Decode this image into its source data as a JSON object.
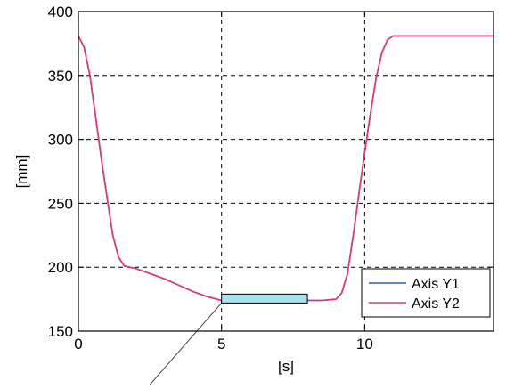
{
  "chart_data": {
    "type": "line",
    "xlabel": "[s]",
    "ylabel": "[mm]",
    "xlim": [
      0,
      14.5
    ],
    "ylim": [
      150,
      400
    ],
    "xticks": [
      0,
      5,
      10
    ],
    "yticks": [
      150,
      200,
      250,
      300,
      350,
      400
    ],
    "grid": true,
    "grid_style": "dashed",
    "legend_position": "bottom-right",
    "series": [
      {
        "name": "Axis Y1",
        "color": "#3b55c8",
        "x": [
          0,
          0.2,
          0.4,
          0.6,
          0.8,
          1.0,
          1.2,
          1.4,
          1.6,
          2.0,
          2.5,
          3.0,
          3.5,
          4.0,
          4.5,
          5.0,
          5.5,
          6.0,
          6.5,
          7.0,
          7.5,
          8.0,
          8.5,
          9.0,
          9.2,
          9.4,
          9.6,
          9.8,
          10.0,
          10.2,
          10.4,
          10.6,
          10.8,
          11.0,
          11.5,
          12.0,
          13.0,
          14.5
        ],
        "y": [
          381,
          372,
          350,
          318,
          285,
          255,
          225,
          208,
          201,
          199,
          195,
          191,
          186,
          181,
          177,
          174,
          174,
          174,
          174,
          174,
          174,
          174,
          174,
          175,
          180,
          195,
          225,
          258,
          290,
          320,
          348,
          368,
          378,
          381,
          381,
          381,
          381,
          381
        ]
      },
      {
        "name": "Axis Y2",
        "color": "#e8336f",
        "x": [
          0,
          0.2,
          0.4,
          0.6,
          0.8,
          1.0,
          1.2,
          1.4,
          1.6,
          2.0,
          2.5,
          3.0,
          3.5,
          4.0,
          4.5,
          5.0,
          5.5,
          6.0,
          6.5,
          7.0,
          7.5,
          8.0,
          8.5,
          9.0,
          9.2,
          9.4,
          9.6,
          9.8,
          10.0,
          10.2,
          10.4,
          10.6,
          10.8,
          11.0,
          11.5,
          12.0,
          13.0,
          14.5
        ],
        "y": [
          381,
          372,
          350,
          318,
          285,
          255,
          225,
          208,
          201,
          199,
          195,
          191,
          186,
          181,
          177,
          174,
          174,
          174,
          174,
          174,
          174,
          174,
          174,
          175,
          180,
          195,
          225,
          258,
          290,
          320,
          348,
          368,
          378,
          381,
          381,
          381,
          381,
          381
        ]
      }
    ],
    "annotation": {
      "type": "highlight-box",
      "x_range": [
        5,
        8
      ],
      "y_range": [
        172,
        179
      ],
      "fill": "#a9e0ee",
      "pointer_to": [
        2.1,
        98
      ]
    }
  }
}
